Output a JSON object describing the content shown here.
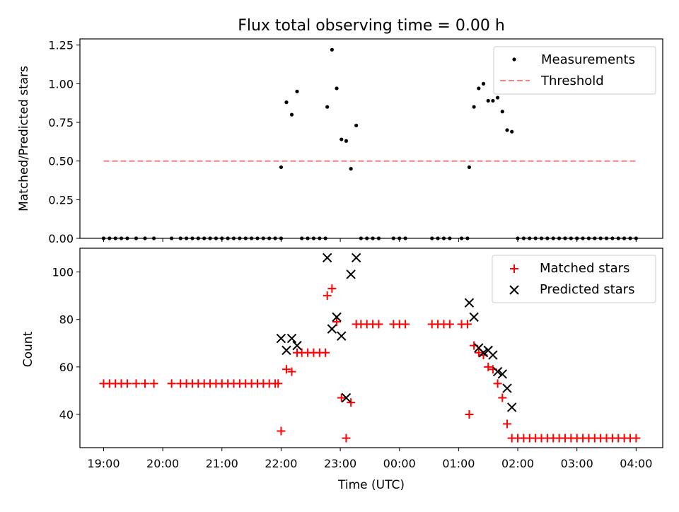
{
  "chart_data": [
    {
      "type": "scatter",
      "title": "Flux total observing time = 0.00 h",
      "xlabel": "",
      "ylabel": "Matched/Predicted stars",
      "xlim": [
        -0.4,
        9.45
      ],
      "ylim": [
        0,
        1.29
      ],
      "x_unit": "hours since 19:00 UTC",
      "xticks": [
        0,
        1,
        2,
        3,
        4,
        5,
        6,
        7,
        8,
        9
      ],
      "yticks": [
        0,
        0.25,
        0.5,
        0.75,
        1.0,
        1.25
      ],
      "ytick_labels": [
        "0.00",
        "0.25",
        "0.50",
        "0.75",
        "1.00",
        "1.25"
      ],
      "legend": {
        "placement": "top-right",
        "entries": [
          "Measurements",
          "Threshold"
        ]
      },
      "series": [
        {
          "name": "Measurements",
          "marker": "dot",
          "color": "#000000",
          "points": [
            [
              0.0,
              0
            ],
            [
              0.1,
              0
            ],
            [
              0.2,
              0
            ],
            [
              0.3,
              0
            ],
            [
              0.4,
              0
            ],
            [
              0.55,
              0
            ],
            [
              0.7,
              0
            ],
            [
              0.85,
              0
            ],
            [
              1.15,
              0
            ],
            [
              1.3,
              0
            ],
            [
              1.4,
              0
            ],
            [
              1.5,
              0
            ],
            [
              1.6,
              0
            ],
            [
              1.7,
              0
            ],
            [
              1.8,
              0
            ],
            [
              1.9,
              0
            ],
            [
              2.0,
              0
            ],
            [
              2.1,
              0
            ],
            [
              2.2,
              0
            ],
            [
              2.3,
              0
            ],
            [
              2.4,
              0
            ],
            [
              2.5,
              0
            ],
            [
              2.6,
              0
            ],
            [
              2.7,
              0
            ],
            [
              2.8,
              0
            ],
            [
              2.9,
              0
            ],
            [
              3.0,
              0
            ],
            [
              3.0,
              0.46
            ],
            [
              3.09,
              0.88
            ],
            [
              3.18,
              0.8
            ],
            [
              3.27,
              0.95
            ],
            [
              3.35,
              0
            ],
            [
              3.45,
              0
            ],
            [
              3.55,
              0
            ],
            [
              3.65,
              0
            ],
            [
              3.75,
              0
            ],
            [
              3.78,
              0.85
            ],
            [
              3.86,
              1.22
            ],
            [
              3.94,
              0.97
            ],
            [
              4.02,
              0.64
            ],
            [
              4.1,
              0.63
            ],
            [
              4.18,
              0.45
            ],
            [
              4.27,
              0.73
            ],
            [
              4.35,
              0
            ],
            [
              4.45,
              0
            ],
            [
              4.55,
              0
            ],
            [
              4.65,
              0
            ],
            [
              4.9,
              0
            ],
            [
              5.0,
              0
            ],
            [
              5.1,
              0
            ],
            [
              5.55,
              0
            ],
            [
              5.65,
              0
            ],
            [
              5.75,
              0
            ],
            [
              5.85,
              0
            ],
            [
              6.05,
              0
            ],
            [
              6.15,
              0
            ],
            [
              6.18,
              0.46
            ],
            [
              6.26,
              0.85
            ],
            [
              6.34,
              0.97
            ],
            [
              6.42,
              1.0
            ],
            [
              6.5,
              0.89
            ],
            [
              6.58,
              0.89
            ],
            [
              6.66,
              0.91
            ],
            [
              6.74,
              0.82
            ],
            [
              6.82,
              0.7
            ],
            [
              6.9,
              0.69
            ],
            [
              7.0,
              0
            ],
            [
              7.1,
              0
            ],
            [
              7.2,
              0
            ],
            [
              7.3,
              0
            ],
            [
              7.4,
              0
            ],
            [
              7.5,
              0
            ],
            [
              7.6,
              0
            ],
            [
              7.7,
              0
            ],
            [
              7.8,
              0
            ],
            [
              7.9,
              0
            ],
            [
              8.0,
              0
            ],
            [
              8.1,
              0
            ],
            [
              8.2,
              0
            ],
            [
              8.3,
              0
            ],
            [
              8.4,
              0
            ],
            [
              8.5,
              0
            ],
            [
              8.6,
              0
            ],
            [
              8.7,
              0
            ],
            [
              8.8,
              0
            ],
            [
              8.9,
              0
            ],
            [
              9.0,
              0
            ]
          ]
        },
        {
          "name": "Threshold",
          "marker": "dashed-line",
          "color": "#ff7f7f",
          "points": [
            [
              0,
              0.5
            ],
            [
              9.0,
              0.5
            ]
          ]
        }
      ]
    },
    {
      "type": "scatter",
      "title": "",
      "xlabel": "Time (UTC)",
      "ylabel": "Count",
      "xlim": [
        -0.4,
        9.45
      ],
      "ylim": [
        26,
        110
      ],
      "x_unit": "hours since 19:00 UTC",
      "xticks": [
        0,
        1,
        2,
        3,
        4,
        5,
        6,
        7,
        8,
        9
      ],
      "xtick_labels": [
        "19:00",
        "20:00",
        "21:00",
        "22:00",
        "23:00",
        "00:00",
        "01:00",
        "02:00",
        "03:00",
        "04:00"
      ],
      "yticks": [
        40,
        60,
        80,
        100
      ],
      "ytick_labels": [
        "40",
        "60",
        "80",
        "100"
      ],
      "legend": {
        "placement": "top-right",
        "entries": [
          "Matched stars",
          "Predicted stars"
        ]
      },
      "series": [
        {
          "name": "Matched stars",
          "marker": "plus",
          "color": "#ff0000",
          "points": [
            [
              0.0,
              53
            ],
            [
              0.1,
              53
            ],
            [
              0.2,
              53
            ],
            [
              0.3,
              53
            ],
            [
              0.4,
              53
            ],
            [
              0.55,
              53
            ],
            [
              0.7,
              53
            ],
            [
              0.85,
              53
            ],
            [
              1.15,
              53
            ],
            [
              1.3,
              53
            ],
            [
              1.4,
              53
            ],
            [
              1.5,
              53
            ],
            [
              1.6,
              53
            ],
            [
              1.7,
              53
            ],
            [
              1.8,
              53
            ],
            [
              1.9,
              53
            ],
            [
              2.0,
              53
            ],
            [
              2.1,
              53
            ],
            [
              2.2,
              53
            ],
            [
              2.3,
              53
            ],
            [
              2.4,
              53
            ],
            [
              2.5,
              53
            ],
            [
              2.6,
              53
            ],
            [
              2.7,
              53
            ],
            [
              2.8,
              53
            ],
            [
              2.9,
              53
            ],
            [
              2.95,
              53
            ],
            [
              3.0,
              33
            ],
            [
              3.09,
              59
            ],
            [
              3.18,
              58
            ],
            [
              3.27,
              66
            ],
            [
              3.35,
              66
            ],
            [
              3.45,
              66
            ],
            [
              3.55,
              66
            ],
            [
              3.65,
              66
            ],
            [
              3.75,
              66
            ],
            [
              3.78,
              90
            ],
            [
              3.86,
              93
            ],
            [
              3.94,
              79
            ],
            [
              4.02,
              47
            ],
            [
              4.1,
              30
            ],
            [
              4.18,
              45
            ],
            [
              4.27,
              78
            ],
            [
              4.35,
              78
            ],
            [
              4.45,
              78
            ],
            [
              4.55,
              78
            ],
            [
              4.65,
              78
            ],
            [
              4.9,
              78
            ],
            [
              5.0,
              78
            ],
            [
              5.1,
              78
            ],
            [
              5.55,
              78
            ],
            [
              5.65,
              78
            ],
            [
              5.75,
              78
            ],
            [
              5.85,
              78
            ],
            [
              6.05,
              78
            ],
            [
              6.15,
              78
            ],
            [
              6.18,
              40
            ],
            [
              6.26,
              69
            ],
            [
              6.34,
              66
            ],
            [
              6.42,
              65
            ],
            [
              6.5,
              60
            ],
            [
              6.58,
              59
            ],
            [
              6.66,
              53
            ],
            [
              6.74,
              47
            ],
            [
              6.82,
              36
            ],
            [
              6.9,
              30
            ],
            [
              7.0,
              30
            ],
            [
              7.1,
              30
            ],
            [
              7.2,
              30
            ],
            [
              7.3,
              30
            ],
            [
              7.4,
              30
            ],
            [
              7.5,
              30
            ],
            [
              7.6,
              30
            ],
            [
              7.7,
              30
            ],
            [
              7.8,
              30
            ],
            [
              7.9,
              30
            ],
            [
              8.0,
              30
            ],
            [
              8.1,
              30
            ],
            [
              8.2,
              30
            ],
            [
              8.3,
              30
            ],
            [
              8.4,
              30
            ],
            [
              8.5,
              30
            ],
            [
              8.6,
              30
            ],
            [
              8.7,
              30
            ],
            [
              8.8,
              30
            ],
            [
              8.9,
              30
            ],
            [
              9.0,
              30
            ]
          ]
        },
        {
          "name": "Predicted stars",
          "marker": "x",
          "color": "#000000",
          "points": [
            [
              3.0,
              72
            ],
            [
              3.09,
              67
            ],
            [
              3.18,
              72
            ],
            [
              3.27,
              69
            ],
            [
              3.78,
              106
            ],
            [
              3.86,
              76
            ],
            [
              3.94,
              81
            ],
            [
              4.02,
              73
            ],
            [
              4.1,
              47
            ],
            [
              4.18,
              99
            ],
            [
              4.27,
              106
            ],
            [
              6.18,
              87
            ],
            [
              6.26,
              81
            ],
            [
              6.34,
              68
            ],
            [
              6.42,
              66
            ],
            [
              6.5,
              67
            ],
            [
              6.58,
              65
            ],
            [
              6.66,
              58
            ],
            [
              6.74,
              57
            ],
            [
              6.82,
              51
            ],
            [
              6.9,
              43
            ]
          ]
        }
      ]
    }
  ]
}
